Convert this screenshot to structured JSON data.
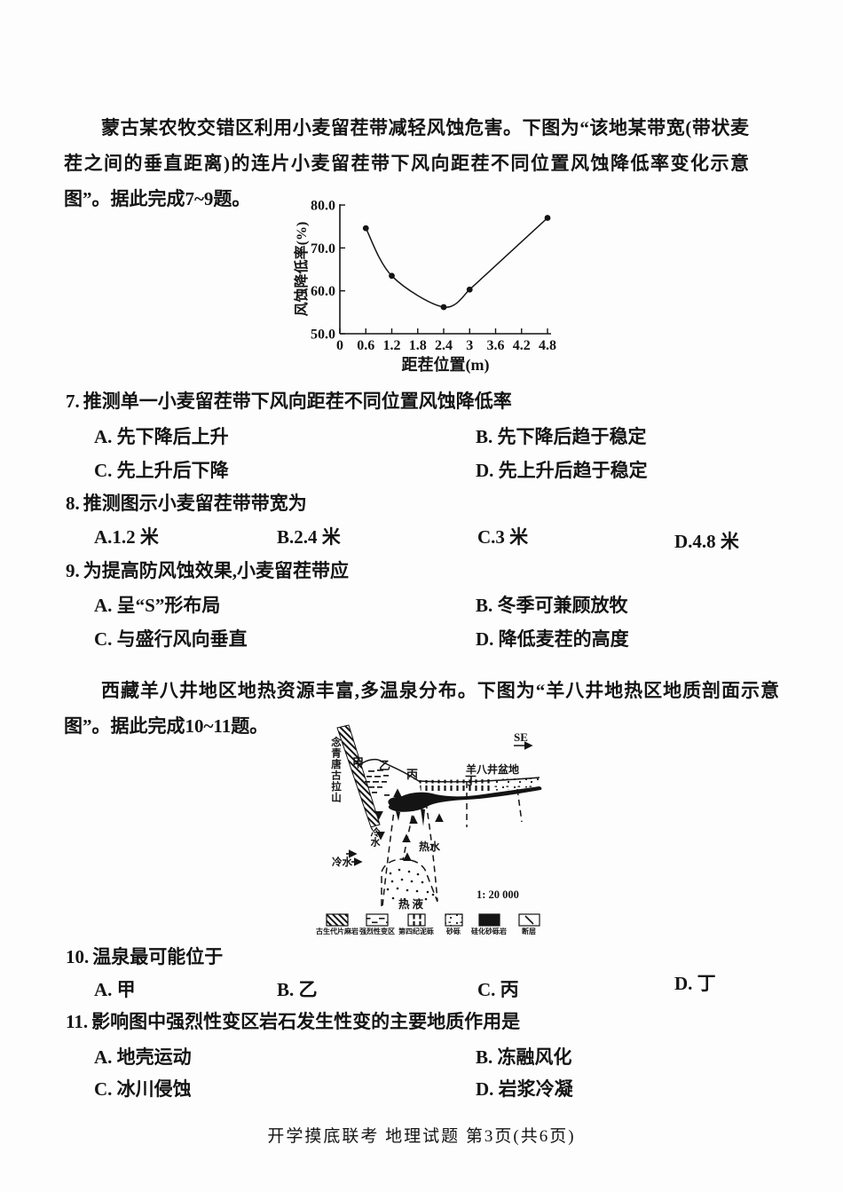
{
  "passages": {
    "p1": "蒙古某农牧交错区利用小麦留茬带减轻风蚀危害。下图为“该地某带宽(带状麦茬之间的垂直距离)的连片小麦留茬带下风向距茬不同位置风蚀降低率变化示意图”。据此完成7~9题。",
    "p2": "西藏羊八井地区地热资源丰富,多温泉分布。下图为“羊八井地热区地质剖面示意图”。据此完成10~11题。"
  },
  "chart_data": {
    "type": "line",
    "x": [
      0.6,
      1.2,
      2.4,
      3,
      4.8
    ],
    "y": [
      74.6,
      63.5,
      56.2,
      60.3,
      77.0
    ],
    "xlabel": "距茬位置(m)",
    "ylabel": "风蚀降低率(%)",
    "x_tick_labels": [
      "0",
      "0.6",
      "1.2",
      "1.8",
      "2.4",
      "3",
      "3.6",
      "4.2",
      "4.8"
    ],
    "x_tick_values": [
      0,
      0.6,
      1.2,
      1.8,
      2.4,
      3,
      3.6,
      4.2,
      4.8
    ],
    "y_tick_labels": [
      "50.0",
      "60.0",
      "70.0",
      "80.0"
    ],
    "y_tick_values": [
      50,
      60,
      70,
      80
    ],
    "xlim": [
      0,
      4.87
    ],
    "ylim": [
      50,
      80
    ],
    "grid": false,
    "marker": "filled-circle"
  },
  "questions": [
    {
      "num": "7.",
      "stem": "推测单一小麦留茬带下风向距茬不同位置风蚀降低率",
      "options": [
        "A. 先下降后上升",
        "B. 先下降后趋于稳定",
        "C. 先上升后下降",
        "D. 先上升后趋于稳定"
      ]
    },
    {
      "num": "8.",
      "stem": "推测图示小麦留茬带带宽为",
      "options": [
        "A.1.2 米",
        "B.2.4 米",
        "C.3 米",
        "D.4.8 米"
      ]
    },
    {
      "num": "9.",
      "stem": "为提高防风蚀效果,小麦留茬带应",
      "options": [
        "A. 呈“S”形布局",
        "B. 冬季可兼顾放牧",
        "C. 与盛行风向垂直",
        "D. 降低麦茬的高度"
      ]
    },
    {
      "num": "10.",
      "stem": "温泉最可能位于",
      "options": [
        "A. 甲",
        "B. 乙",
        "C. 丙",
        "D. 丁"
      ]
    },
    {
      "num": "11.",
      "stem": "影响图中强烈性变区岩石发生性变的主要地质作用是",
      "options": [
        "A. 地壳运动",
        "B. 冻融风化",
        "C. 冰川侵蚀",
        "D. 岩浆冷凝"
      ]
    }
  ],
  "diagram": {
    "direction_label": "SE",
    "mountain_label": "念青唐古拉山",
    "basin_label": "羊八井盆地",
    "points": [
      "甲",
      "乙",
      "丙",
      "丁"
    ],
    "cold_water_label": "冷水",
    "hot_water_label": "热水",
    "hot_fluid_label": "热液",
    "scale_label": "1: 20 000",
    "legend": [
      "古生代片麻岩",
      "强烈性变区",
      "第四纪泥砾",
      "砂砾",
      "硅化砂砾岩",
      "断层"
    ]
  },
  "footer": "开学摸底联考 地理试题 第3页(共6页)"
}
